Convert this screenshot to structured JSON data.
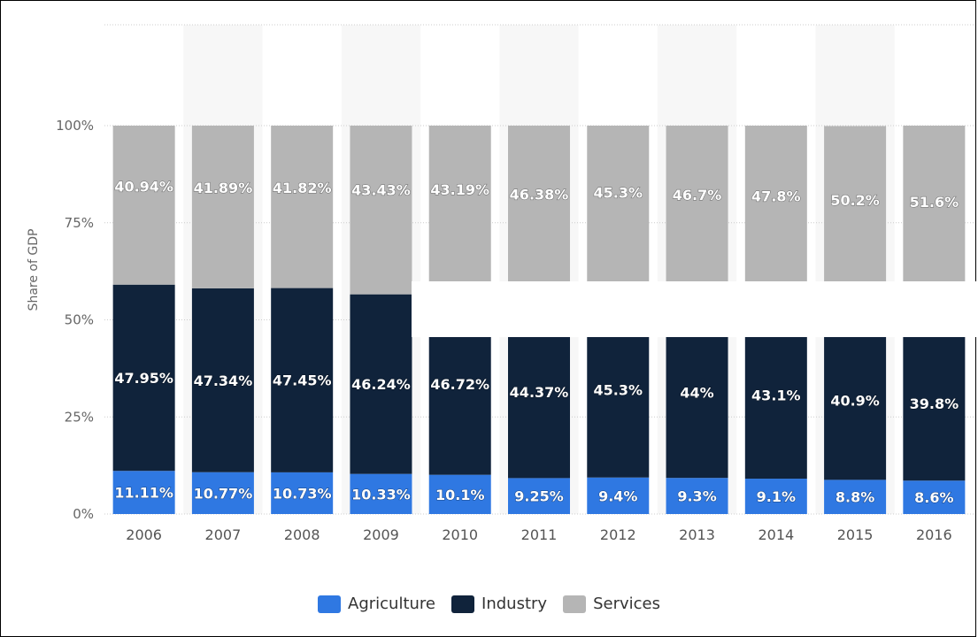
{
  "colors": {
    "agriculture": "#2f78e2",
    "industry": "#10233b",
    "services": "#b5b5b5",
    "band": "#f7f7f7",
    "grid": "#cccccc"
  },
  "chart_data": {
    "type": "bar",
    "stacked": true,
    "ylabel": "Share of GDP",
    "ylim": [
      0,
      100
    ],
    "yticks": [
      "0%",
      "25%",
      "50%",
      "75%",
      "100%"
    ],
    "categories": [
      "2006",
      "2007",
      "2008",
      "2009",
      "2010",
      "2011",
      "2012",
      "2013",
      "2014",
      "2015",
      "2016"
    ],
    "series": [
      {
        "name": "Agriculture",
        "values": [
          11.11,
          10.77,
          10.73,
          10.33,
          10.1,
          9.25,
          9.4,
          9.3,
          9.1,
          8.8,
          8.6
        ],
        "labels": [
          "11.11%",
          "10.77%",
          "10.73%",
          "10.33%",
          "10.1%",
          "9.25%",
          "9.4%",
          "9.3%",
          "9.1%",
          "8.8%",
          "8.6%"
        ]
      },
      {
        "name": "Industry",
        "values": [
          47.95,
          47.34,
          47.45,
          46.24,
          46.72,
          44.37,
          45.3,
          44,
          43.1,
          40.9,
          39.8
        ],
        "labels": [
          "47.95%",
          "47.34%",
          "47.45%",
          "46.24%",
          "46.72%",
          "44.37%",
          "45.3%",
          "44%",
          "43.1%",
          "40.9%",
          "39.8%"
        ]
      },
      {
        "name": "Services",
        "values": [
          40.94,
          41.89,
          41.82,
          43.43,
          43.19,
          46.38,
          45.3,
          46.7,
          47.8,
          50.2,
          51.6
        ],
        "labels": [
          "40.94%",
          "41.89%",
          "41.82%",
          "43.43%",
          "43.19%",
          "46.38%",
          "45.3%",
          "46.7%",
          "47.8%",
          "50.2%",
          "51.6%"
        ]
      }
    ],
    "grid": true,
    "legend": "bottom-center"
  }
}
